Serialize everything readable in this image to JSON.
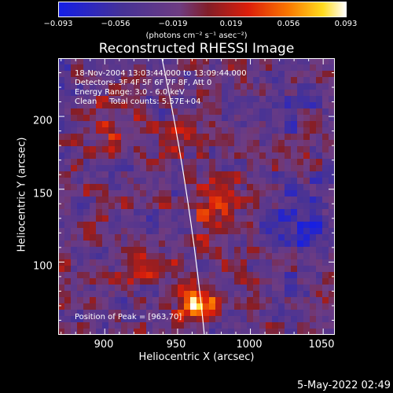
{
  "colorbar": {
    "ticks": [
      "−0.093",
      "−0.056",
      "−0.019",
      "0.019",
      "0.056",
      "0.093"
    ],
    "units": "(photons cm⁻² s⁻¹ asec⁻²)"
  },
  "chart_data": {
    "type": "heatmap",
    "title": "Reconstructed RHESSI Image",
    "xlabel": "Heliocentric X (arcsec)",
    "ylabel": "Heliocentric Y (arcsec)",
    "xlim": [
      868,
      1058
    ],
    "ylim": [
      50,
      240
    ],
    "xticks": [
      "900",
      "950",
      "1000",
      "1050"
    ],
    "yticks": [
      "100",
      "150",
      "200"
    ],
    "zlim": [
      -0.093,
      0.093
    ],
    "peak": [
      963,
      70
    ],
    "colormap": "rainbow-hot (blue → purple → red → orange → yellow → white)"
  },
  "info": {
    "line1": "18-Nov-2004 13:03:44.000 to 13:09:44.000",
    "line2": "Detectors: 3F 4F 5F 6F 7F 8F, Att 0",
    "line3": "Energy Range: 3.0 - 6.0 keV",
    "line4": "Clean     Total counts: 5.57E+04",
    "peak_label": "Position of Peak = [963,70]"
  },
  "timestamp": "5-May-2022 02:49"
}
